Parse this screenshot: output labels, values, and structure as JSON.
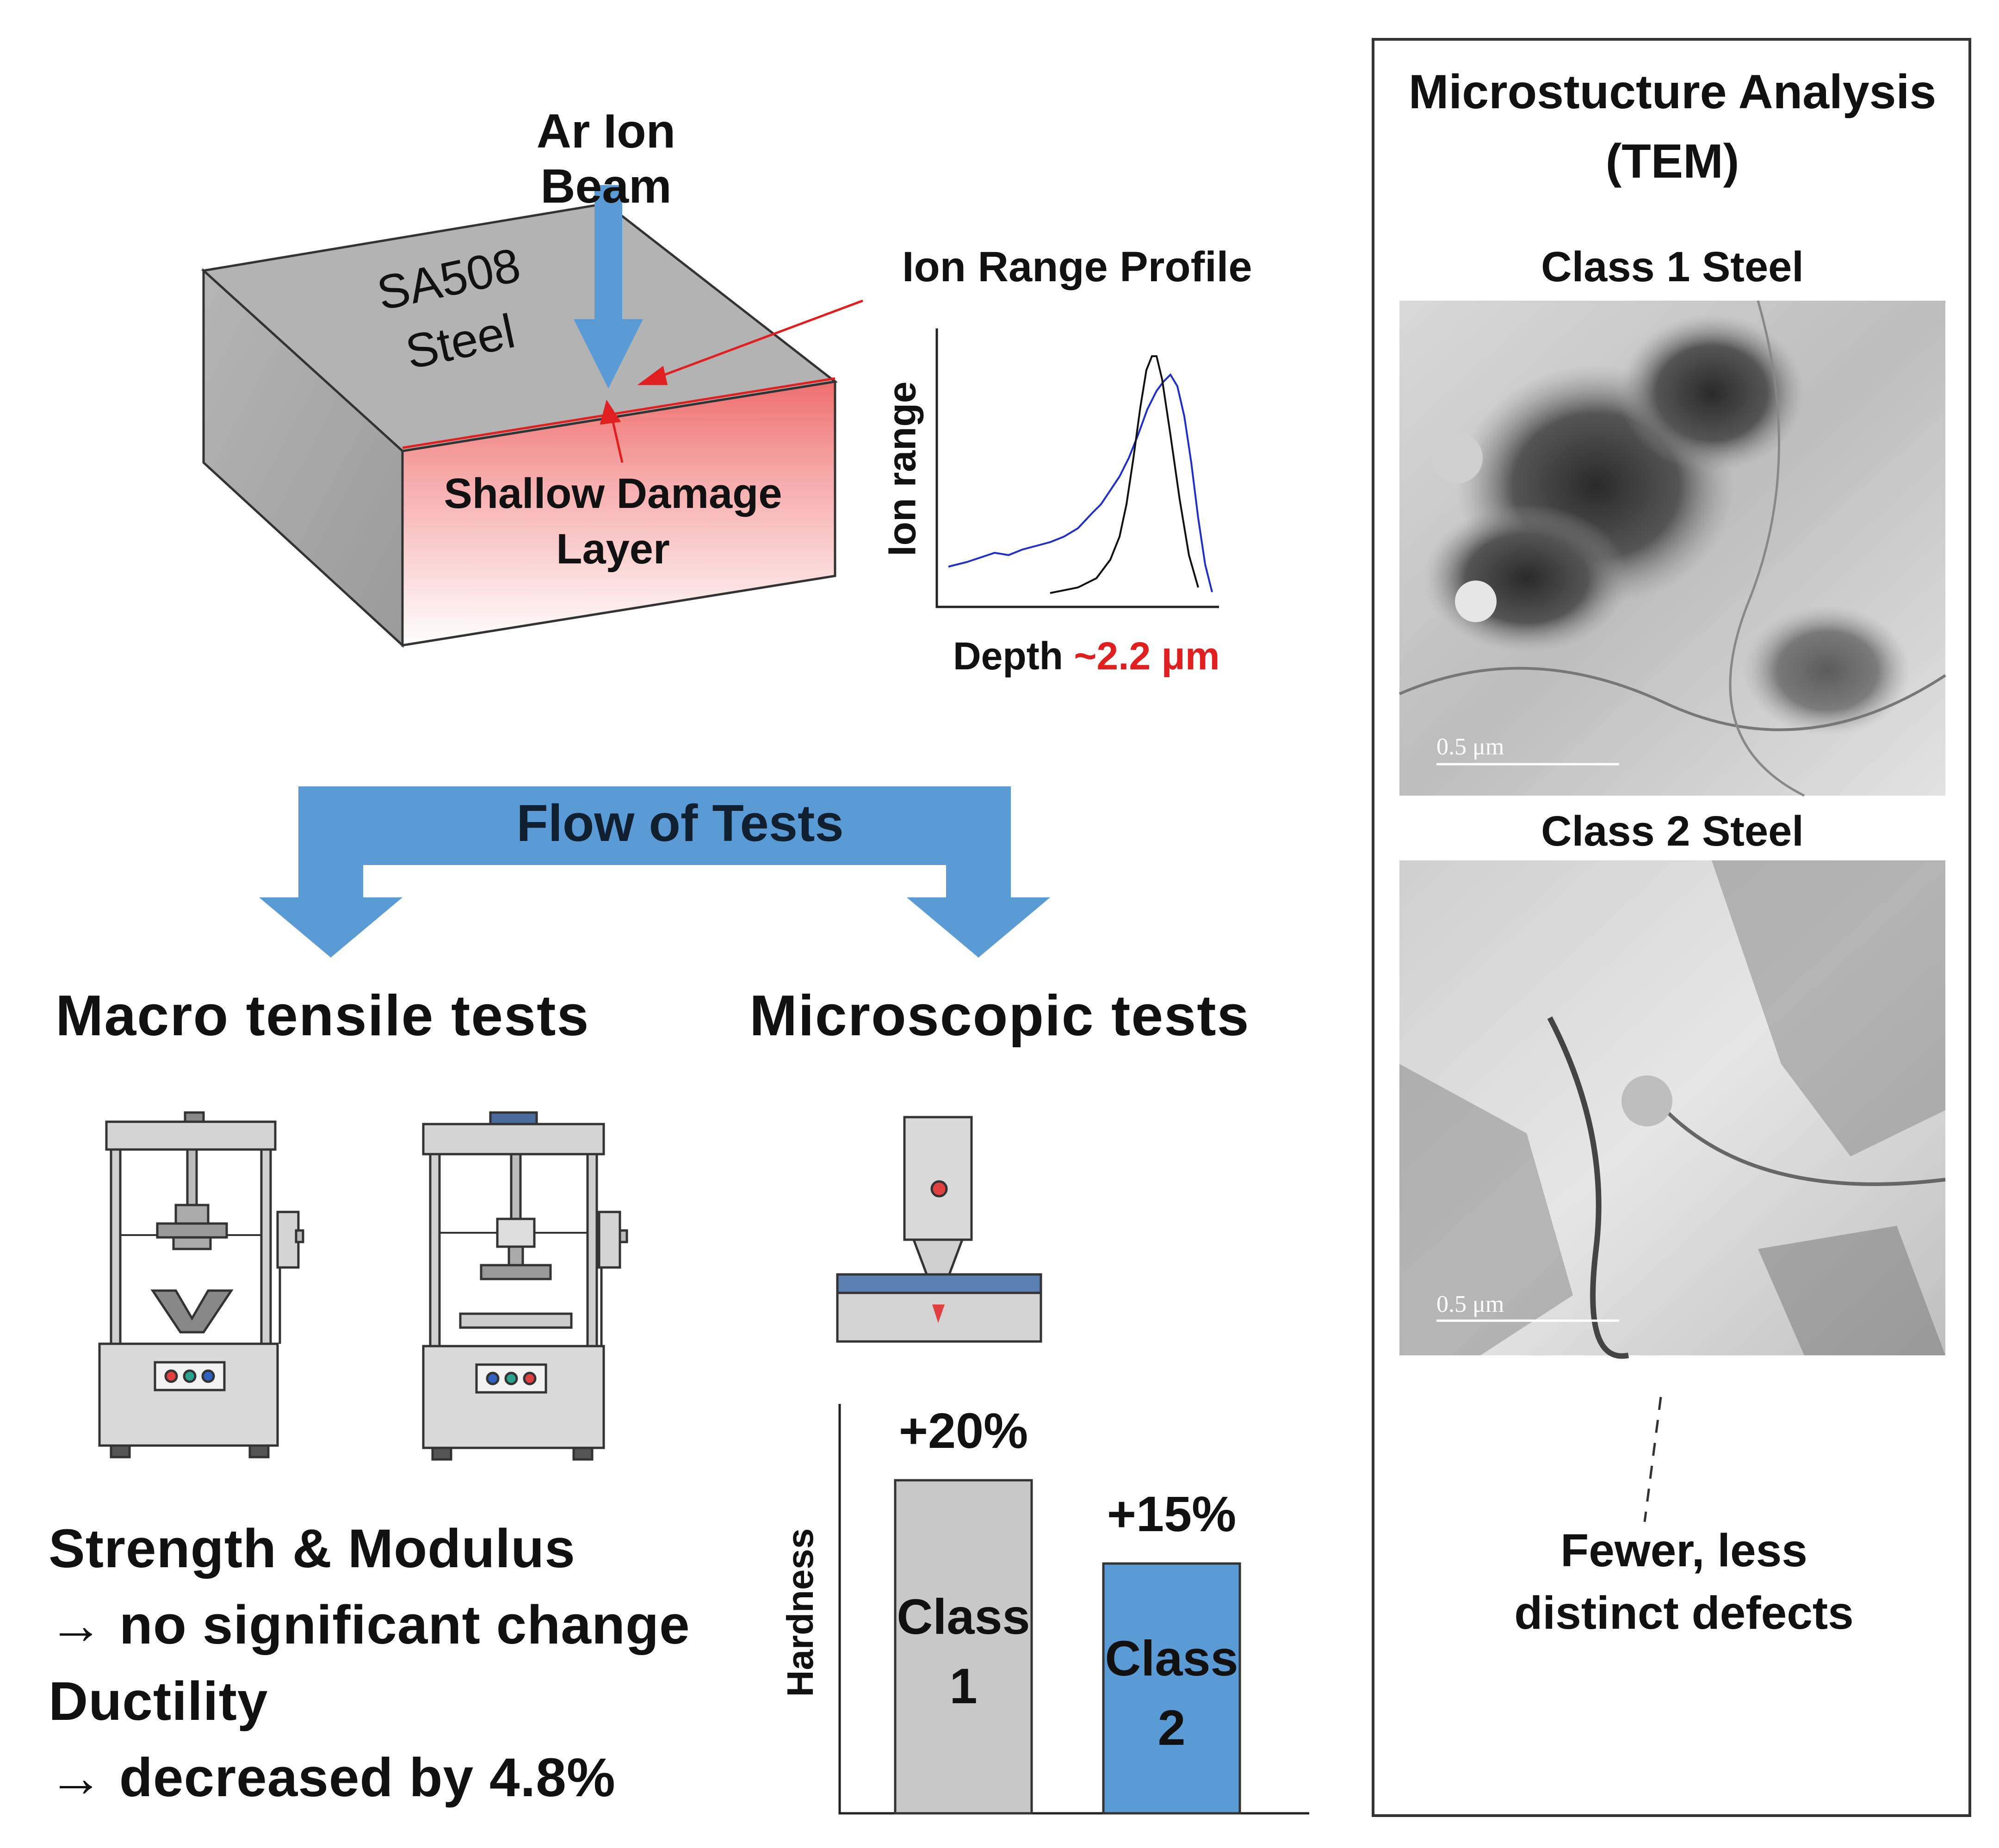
{
  "beam": {
    "label": "Ar Ion Beam"
  },
  "block": {
    "material_line1": "SA508",
    "material_line2": "Steel",
    "damage_line1": "Shallow Damage",
    "damage_line2": "Layer"
  },
  "profile": {
    "title": "Ion Range Profile",
    "ylabel": "Ion range",
    "xlabel": "Depth",
    "depth_value": "~2.2 μm"
  },
  "flow": {
    "label": "Flow of Tests"
  },
  "macro": {
    "title": "Macro tensile tests",
    "result_1": "Strength & Modulus",
    "result_2": "→ no significant change",
    "result_3": "Ductility",
    "result_4": "→ decreased by 4.8%"
  },
  "micro": {
    "title": "Microscopic tests"
  },
  "chart_data": {
    "type": "bar",
    "ylabel": "Hardness",
    "categories": [
      "Class 1",
      "Class 2"
    ],
    "values": [
      20,
      15
    ],
    "data_labels": [
      "+20%",
      "+15%"
    ],
    "bar_labels": [
      [
        "Class",
        "1"
      ],
      [
        "Class",
        "2"
      ]
    ],
    "colors": [
      "#c8c8c8",
      "#5b9bd5"
    ]
  },
  "tem": {
    "title_line1": "Microstucture Analysis",
    "title_line2": "(TEM)",
    "class1_label": "Class 1 Steel",
    "class2_label": "Class 2 Steel",
    "scale_bar": "0.5 μm",
    "note_line1": "Fewer, less",
    "note_line2": "distinct defects"
  },
  "colors": {
    "accent_blue": "#5b9bd5",
    "highlight_red": "#e02020",
    "damage_red": "#f08080"
  }
}
